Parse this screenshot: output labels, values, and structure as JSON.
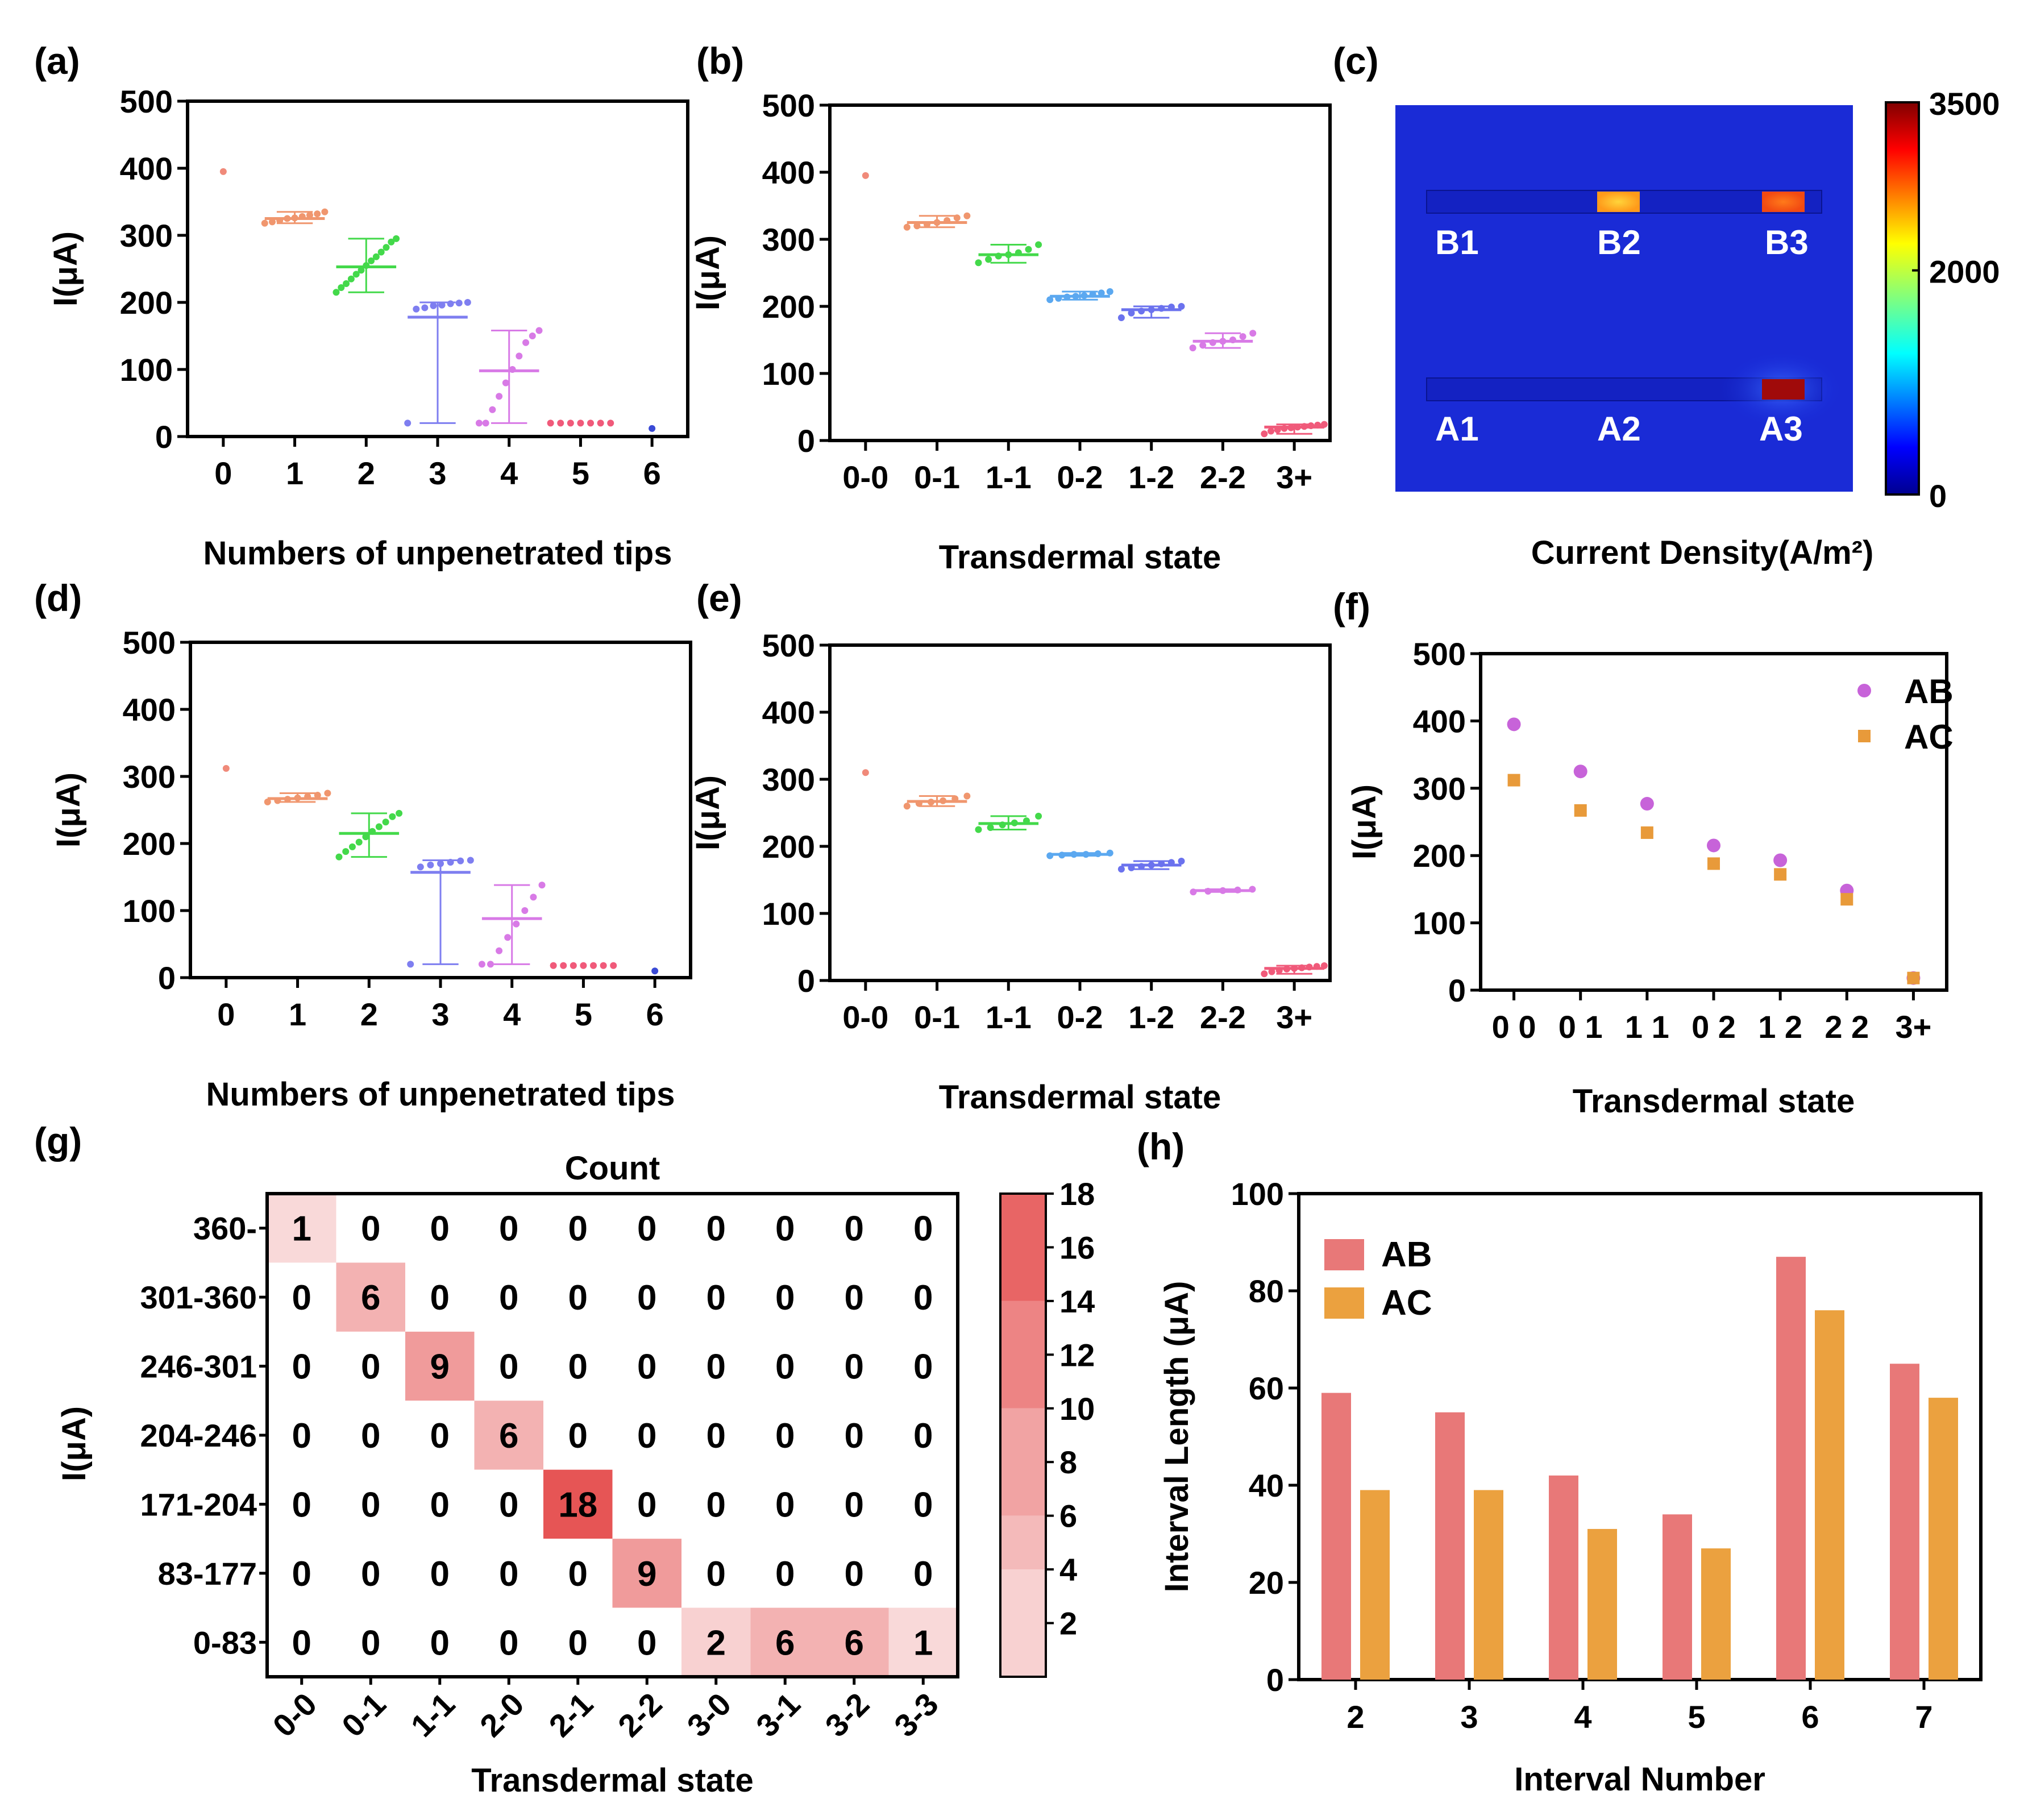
{
  "chart_data": [
    {
      "panel": "(a)",
      "type": "scatter",
      "xlabel": "Numbers of unpenetrated tips",
      "ylabel": "I(μA)",
      "ylim": [
        0,
        500
      ],
      "yticks": [
        "0",
        "100",
        "200",
        "300",
        "400",
        "500"
      ],
      "categories": [
        "0",
        "1",
        "2",
        "3",
        "4",
        "5",
        "6"
      ],
      "groups": [
        {
          "mean": 395,
          "min": 395,
          "max": 395,
          "color": "#f08a7a",
          "points": [
            395
          ]
        },
        {
          "mean": 325,
          "min": 318,
          "max": 335,
          "color": "#f0966e",
          "points": [
            318,
            320,
            322,
            325,
            326,
            328,
            330,
            332,
            335
          ]
        },
        {
          "mean": 253,
          "min": 215,
          "max": 295,
          "color": "#43d94a",
          "points": [
            215,
            222,
            228,
            235,
            242,
            248,
            255,
            262,
            268,
            275,
            282,
            290,
            295
          ]
        },
        {
          "mean": 178,
          "min": 20,
          "max": 200,
          "color": "#7e7ef0",
          "points": [
            20,
            190,
            192,
            195,
            196,
            198,
            199,
            200
          ]
        },
        {
          "mean": 98,
          "min": 20,
          "max": 158,
          "color": "#d87ae6",
          "points": [
            20,
            20,
            40,
            60,
            80,
            100,
            120,
            140,
            150,
            158
          ]
        },
        {
          "mean": 20,
          "min": 20,
          "max": 20,
          "color": "#f05a7a",
          "points": [
            20,
            20,
            20,
            20,
            20,
            20,
            20
          ]
        },
        {
          "mean": 12,
          "min": 12,
          "max": 12,
          "color": "#3a4ad6",
          "points": [
            12
          ]
        }
      ]
    },
    {
      "panel": "(b)",
      "type": "scatter",
      "xlabel": "Transdermal state",
      "ylabel": "I(μA)",
      "ylim": [
        0,
        500
      ],
      "yticks": [
        "0",
        "100",
        "200",
        "300",
        "400",
        "500"
      ],
      "categories": [
        "0-0",
        "0-1",
        "1-1",
        "0-2",
        "1-2",
        "2-2",
        "3+"
      ],
      "groups": [
        {
          "mean": 395,
          "min": 395,
          "max": 395,
          "color": "#f08a7a",
          "points": [
            395
          ]
        },
        {
          "mean": 325,
          "min": 318,
          "max": 335,
          "color": "#f0966e",
          "points": [
            318,
            320,
            322,
            325,
            328,
            332,
            335
          ]
        },
        {
          "mean": 277,
          "min": 265,
          "max": 292,
          "color": "#43d94a",
          "points": [
            265,
            270,
            275,
            277,
            280,
            285,
            292
          ]
        },
        {
          "mean": 215,
          "min": 210,
          "max": 222,
          "color": "#5ba8f0",
          "points": [
            210,
            212,
            214,
            215,
            216,
            218,
            220,
            222
          ]
        },
        {
          "mean": 195,
          "min": 183,
          "max": 200,
          "color": "#6b72ee",
          "points": [
            183,
            190,
            193,
            195,
            197,
            199,
            200
          ]
        },
        {
          "mean": 148,
          "min": 138,
          "max": 160,
          "color": "#d87ae6",
          "points": [
            138,
            142,
            146,
            148,
            150,
            155,
            160
          ]
        },
        {
          "mean": 20,
          "min": 10,
          "max": 24,
          "color": "#f05a7a",
          "points": [
            10,
            14,
            16,
            18,
            19,
            20,
            21,
            22,
            23,
            24
          ]
        }
      ]
    },
    {
      "panel": "(c)",
      "type": "heatmap",
      "title": "Current Density(A/m²)",
      "colorbar": {
        "min": 0,
        "max": 3500,
        "ticks": [
          "3500",
          "2000",
          "0"
        ]
      },
      "labels": [
        "B1",
        "B2",
        "B3",
        "A1",
        "A2",
        "A3"
      ]
    },
    {
      "panel": "(d)",
      "type": "scatter",
      "xlabel": "Numbers of unpenetrated tips",
      "ylabel": "I(μA)",
      "ylim": [
        0,
        500
      ],
      "yticks": [
        "0",
        "100",
        "200",
        "300",
        "400",
        "500"
      ],
      "categories": [
        "0",
        "1",
        "2",
        "3",
        "4",
        "5",
        "6"
      ],
      "groups": [
        {
          "mean": 312,
          "min": 312,
          "max": 312,
          "color": "#f08a7a",
          "points": [
            312
          ]
        },
        {
          "mean": 267,
          "min": 262,
          "max": 275,
          "color": "#f0966e",
          "points": [
            262,
            264,
            266,
            268,
            270,
            272,
            275
          ]
        },
        {
          "mean": 215,
          "min": 180,
          "max": 245,
          "color": "#43d94a",
          "points": [
            180,
            188,
            195,
            202,
            210,
            218,
            225,
            232,
            240,
            245
          ]
        },
        {
          "mean": 157,
          "min": 20,
          "max": 175,
          "color": "#7e7ef0",
          "points": [
            20,
            165,
            168,
            170,
            172,
            174,
            175
          ]
        },
        {
          "mean": 88,
          "min": 20,
          "max": 138,
          "color": "#d87ae6",
          "points": [
            20,
            20,
            40,
            60,
            80,
            100,
            120,
            138
          ]
        },
        {
          "mean": 18,
          "min": 18,
          "max": 18,
          "color": "#f05a7a",
          "points": [
            18,
            18,
            18,
            18,
            18,
            18,
            18
          ]
        },
        {
          "mean": 10,
          "min": 10,
          "max": 10,
          "color": "#3a4ad6",
          "points": [
            10
          ]
        }
      ]
    },
    {
      "panel": "(e)",
      "type": "scatter",
      "xlabel": "Transdermal state",
      "ylabel": "I(μA)",
      "ylim": [
        0,
        500
      ],
      "yticks": [
        "0",
        "100",
        "200",
        "300",
        "400",
        "500"
      ],
      "categories": [
        "0-0",
        "0-1",
        "1-1",
        "0-2",
        "1-2",
        "2-2",
        "3+"
      ],
      "groups": [
        {
          "mean": 310,
          "min": 310,
          "max": 310,
          "color": "#f08a7a",
          "points": [
            310
          ]
        },
        {
          "mean": 267,
          "min": 260,
          "max": 275,
          "color": "#f0966e",
          "points": [
            260,
            264,
            266,
            268,
            271,
            275
          ]
        },
        {
          "mean": 234,
          "min": 225,
          "max": 245,
          "color": "#43d94a",
          "points": [
            225,
            228,
            232,
            235,
            238,
            245
          ]
        },
        {
          "mean": 188,
          "min": 186,
          "max": 190,
          "color": "#5ba8f0",
          "points": [
            186,
            187,
            188,
            188,
            189,
            190
          ]
        },
        {
          "mean": 172,
          "min": 166,
          "max": 178,
          "color": "#6b72ee",
          "points": [
            166,
            168,
            170,
            172,
            174,
            176,
            178
          ]
        },
        {
          "mean": 134,
          "min": 132,
          "max": 136,
          "color": "#d87ae6",
          "points": [
            132,
            133,
            134,
            135,
            136
          ]
        },
        {
          "mean": 18,
          "min": 10,
          "max": 22,
          "color": "#f05a7a",
          "points": [
            10,
            13,
            15,
            17,
            18,
            19,
            20,
            21,
            22
          ]
        }
      ]
    },
    {
      "panel": "(f)",
      "type": "scatter",
      "xlabel": "Transdermal state",
      "ylabel": "I(μA)",
      "ylim": [
        0,
        500
      ],
      "yticks": [
        "0",
        "100",
        "200",
        "300",
        "400",
        "500"
      ],
      "categories": [
        "0 0",
        "0 1",
        "1 1",
        "0 2",
        "1 2",
        "2 2",
        "3+"
      ],
      "series": [
        {
          "name": "AB",
          "color": "#c763d9",
          "values": [
            395,
            325,
            277,
            215,
            193,
            148,
            18
          ]
        },
        {
          "name": "AC",
          "color": "#e89a3a",
          "values": [
            312,
            267,
            234,
            188,
            172,
            135,
            18
          ]
        }
      ]
    },
    {
      "panel": "(g)",
      "type": "heatmap",
      "title": "Count",
      "xlabel": "Transdermal state",
      "ylabel": "I(μA)",
      "xcategories": [
        "0-0",
        "0-1",
        "1-1",
        "2-0",
        "2-1",
        "2-2",
        "3-0",
        "3-1",
        "3-2",
        "3-3"
      ],
      "ycategories": [
        "360-",
        "301-360",
        "246-301",
        "204-246",
        "171-204",
        "83-177",
        "0-83"
      ],
      "values": [
        [
          1,
          0,
          0,
          0,
          0,
          0,
          0,
          0,
          0,
          0
        ],
        [
          0,
          6,
          0,
          0,
          0,
          0,
          0,
          0,
          0,
          0
        ],
        [
          0,
          0,
          9,
          0,
          0,
          0,
          0,
          0,
          0,
          0
        ],
        [
          0,
          0,
          0,
          6,
          0,
          0,
          0,
          0,
          0,
          0
        ],
        [
          0,
          0,
          0,
          0,
          18,
          0,
          0,
          0,
          0,
          0
        ],
        [
          0,
          0,
          0,
          0,
          0,
          9,
          0,
          0,
          0,
          0
        ],
        [
          0,
          0,
          0,
          0,
          0,
          0,
          2,
          6,
          6,
          1
        ]
      ],
      "colorbar": {
        "min": 0,
        "max": 18,
        "ticks": [
          "18",
          "16",
          "14",
          "12",
          "10",
          "8",
          "6",
          "4",
          "2"
        ]
      }
    },
    {
      "panel": "(h)",
      "type": "bar",
      "xlabel": "Interval Number",
      "ylabel": "Interval Length (μA)",
      "ylim": [
        0,
        100
      ],
      "yticks": [
        "0",
        "20",
        "40",
        "60",
        "80",
        "100"
      ],
      "categories": [
        "2",
        "3",
        "4",
        "5",
        "6",
        "7"
      ],
      "series": [
        {
          "name": "AB",
          "color": "#e87878",
          "values": [
            59,
            55,
            42,
            34,
            87,
            65
          ]
        },
        {
          "name": "AC",
          "color": "#eba13f",
          "values": [
            39,
            39,
            31,
            27,
            76,
            58
          ]
        }
      ]
    }
  ]
}
